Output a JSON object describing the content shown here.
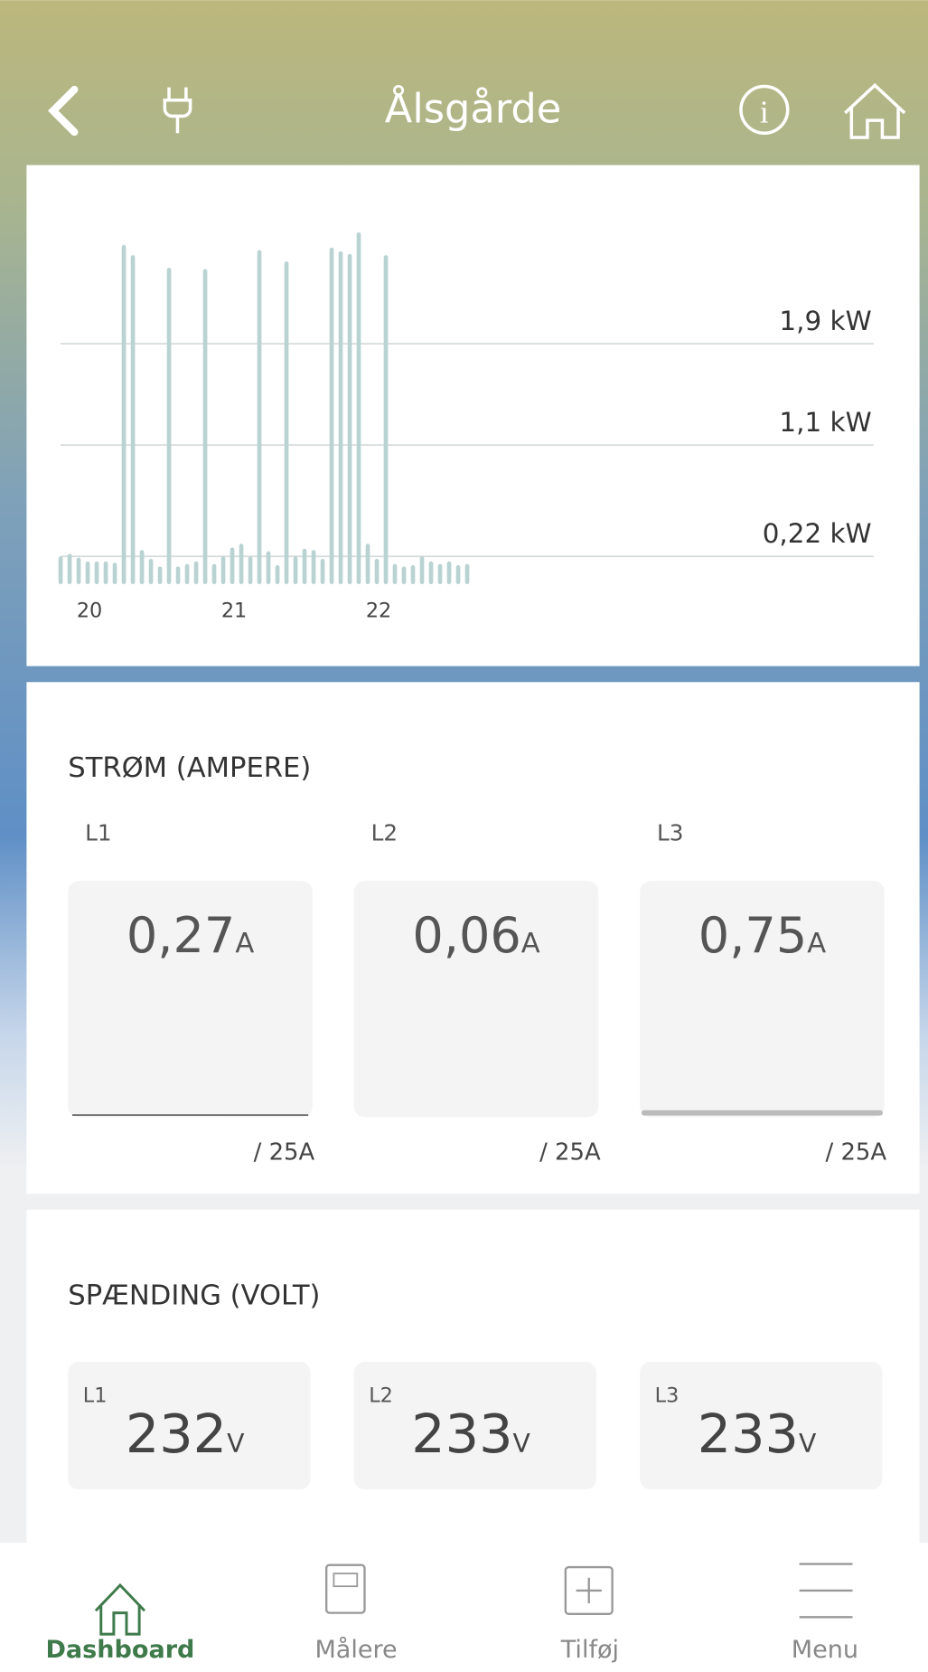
{
  "header": {
    "title": "Ålsgårde"
  },
  "chart": {
    "type": "bar",
    "x": [
      19.8,
      19.8625,
      19.925,
      19.9875,
      20.05,
      20.1125,
      20.175,
      20.2375,
      20.3,
      20.3625,
      20.425,
      20.4875,
      20.55,
      20.6125,
      20.675,
      20.7375,
      20.8,
      20.8625,
      20.925,
      20.9875,
      21.05,
      21.1125,
      21.175,
      21.2375,
      21.3,
      21.3625,
      21.425,
      21.4875,
      21.55,
      21.6125,
      21.675,
      21.7375,
      21.8,
      21.8625,
      21.925,
      21.9875,
      22.05,
      22.1125,
      22.175,
      22.2375,
      22.3,
      22.3625,
      22.425,
      22.4875,
      22.55,
      22.6125
    ],
    "values": [
      0.22,
      0.24,
      0.21,
      0.18,
      0.18,
      0.18,
      0.17,
      2.68,
      2.6,
      0.27,
      0.2,
      0.14,
      2.5,
      0.14,
      0.16,
      0.18,
      2.49,
      0.16,
      0.22,
      0.29,
      0.32,
      0.22,
      2.64,
      0.26,
      0.15,
      2.55,
      0.22,
      0.28,
      0.27,
      0.2,
      2.66,
      2.63,
      2.61,
      2.78,
      0.32,
      0.2,
      2.6,
      0.16,
      0.14,
      0.15,
      0.22,
      0.18,
      0.16,
      0.18,
      0.15,
      0.16
    ],
    "color": "#b9d3d2",
    "xlim": [
      19.8,
      25.425
    ],
    "xticks": [
      20,
      21,
      22
    ],
    "ylim": [
      0,
      2.9
    ],
    "yticks": [
      {
        "value": 0.22,
        "label": "0,22 kW"
      },
      {
        "value": 1.1,
        "label": "1,1 kW"
      },
      {
        "value": 1.9,
        "label": "1,9 kW"
      }
    ],
    "grid": true
  },
  "current": {
    "title": "STRØM (AMPERE)",
    "phases": [
      {
        "name": "L1",
        "value": "0,27",
        "unit": "A",
        "max": "/ 25A"
      },
      {
        "name": "L2",
        "value": "0,06",
        "unit": "A",
        "max": "/ 25A"
      },
      {
        "name": "L3",
        "value": "0,75",
        "unit": "A",
        "max": "/ 25A"
      }
    ]
  },
  "voltage": {
    "title": "SPÆNDING (VOLT)",
    "phases": [
      {
        "name": "L1",
        "value": "232",
        "unit": "V"
      },
      {
        "name": "L2",
        "value": "233",
        "unit": "V"
      },
      {
        "name": "L3",
        "value": "233",
        "unit": "V"
      }
    ]
  },
  "nav": [
    "Dashboard",
    "Målere",
    "Tilføj",
    "Menu"
  ]
}
